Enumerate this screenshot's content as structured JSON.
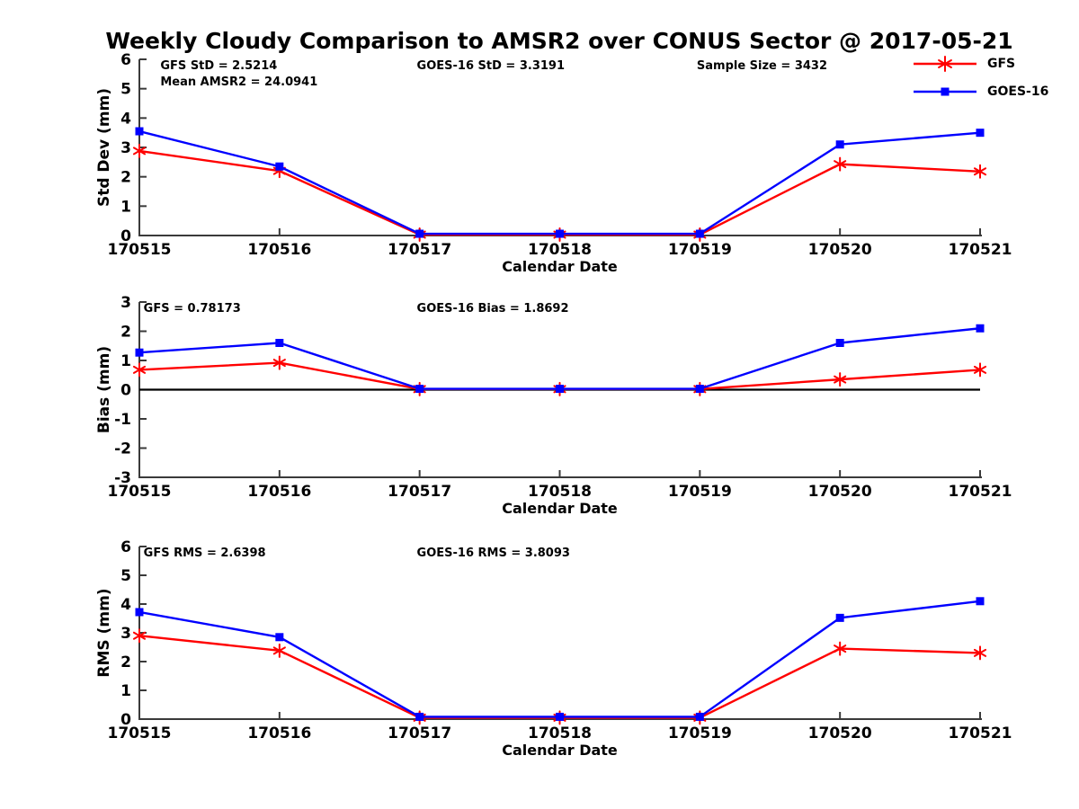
{
  "title": "Weekly Cloudy Comparison to AMSR2 over CONUS Sector @ 2017-05-21",
  "colors": {
    "gfs": "#ff0000",
    "goes16": "#0000ff",
    "axis": "#3a3a3a",
    "zero_line": "#000000",
    "text": "#000000",
    "background": "#ffffff"
  },
  "legend": {
    "items": [
      {
        "label": "GFS",
        "color": "#ff0000",
        "marker": "asterisk"
      },
      {
        "label": "GOES-16",
        "color": "#0000ff",
        "marker": "square"
      }
    ]
  },
  "chart_data": [
    {
      "type": "line",
      "name": "std-dev",
      "title": "",
      "xlabel": "Calendar Date",
      "ylabel": "Std Dev (mm)",
      "ylim": [
        0,
        6
      ],
      "yticks": [
        0,
        1,
        2,
        3,
        4,
        5,
        6
      ],
      "grid": false,
      "zeroline": false,
      "categories": [
        "170515",
        "170516",
        "170517",
        "170518",
        "170519",
        "170520",
        "170521"
      ],
      "annotations": [
        {
          "text": "GFS StD = 2.5214",
          "fx": 0.025,
          "row": 0
        },
        {
          "text": "Mean AMSR2 = 24.0941",
          "fx": 0.025,
          "row": 1
        },
        {
          "text": "GOES-16 StD = 3.3191",
          "fx": 0.33,
          "row": 0
        },
        {
          "text": "Sample Size = 3432",
          "fx": 0.663,
          "row": 0
        }
      ],
      "series": [
        {
          "name": "GFS",
          "color": "#ff0000",
          "marker": "asterisk",
          "values": [
            2.88,
            2.2,
            0.03,
            0.03,
            0.03,
            2.43,
            2.18
          ]
        },
        {
          "name": "GOES-16",
          "color": "#0000ff",
          "marker": "square",
          "values": [
            3.55,
            2.35,
            0.06,
            0.06,
            0.06,
            3.1,
            3.5
          ]
        }
      ]
    },
    {
      "type": "line",
      "name": "bias",
      "title": "",
      "xlabel": "Calendar Date",
      "ylabel": "Bias (mm)",
      "ylim": [
        -3,
        3
      ],
      "yticks": [
        -3,
        -2,
        -1,
        0,
        1,
        2,
        3
      ],
      "grid": false,
      "zeroline": true,
      "categories": [
        "170515",
        "170516",
        "170517",
        "170518",
        "170519",
        "170520",
        "170521"
      ],
      "annotations": [
        {
          "text": "GFS = 0.78173",
          "fx": 0.005,
          "row": 0
        },
        {
          "text": "GOES-16 Bias  = 1.8692",
          "fx": 0.33,
          "row": 0
        }
      ],
      "series": [
        {
          "name": "GFS",
          "color": "#ff0000",
          "marker": "asterisk",
          "values": [
            0.68,
            0.92,
            0.02,
            0.02,
            0.02,
            0.35,
            0.68
          ]
        },
        {
          "name": "GOES-16",
          "color": "#0000ff",
          "marker": "square",
          "values": [
            1.27,
            1.6,
            0.03,
            0.03,
            0.03,
            1.6,
            2.1
          ]
        }
      ]
    },
    {
      "type": "line",
      "name": "rms",
      "title": "",
      "xlabel": "Calendar Date",
      "ylabel": "RMS (mm)",
      "ylim": [
        0,
        6
      ],
      "yticks": [
        0,
        1,
        2,
        3,
        4,
        5,
        6
      ],
      "grid": false,
      "zeroline": false,
      "categories": [
        "170515",
        "170516",
        "170517",
        "170518",
        "170519",
        "170520",
        "170521"
      ],
      "annotations": [
        {
          "text": "GFS RMS = 2.6398",
          "fx": 0.005,
          "row": 0
        },
        {
          "text": "GOES-16 RMS = 3.8093",
          "fx": 0.33,
          "row": 0
        }
      ],
      "series": [
        {
          "name": "GFS",
          "color": "#ff0000",
          "marker": "asterisk",
          "values": [
            2.9,
            2.38,
            0.05,
            0.05,
            0.05,
            2.45,
            2.3
          ]
        },
        {
          "name": "GOES-16",
          "color": "#0000ff",
          "marker": "square",
          "values": [
            3.72,
            2.85,
            0.08,
            0.08,
            0.08,
            3.52,
            4.1
          ]
        }
      ]
    }
  ]
}
